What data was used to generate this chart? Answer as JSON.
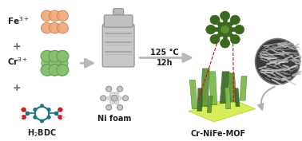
{
  "background_color": "#ffffff",
  "fe_label": "Fe$^{3+}$",
  "cr_label": "Cr$^{3+}$",
  "h2bdc_label": "H$_2$BDC",
  "nifoam_label": "Ni foam",
  "product_label": "Cr-NiFe-MOF",
  "condition1": "125 °C",
  "condition2": "12h",
  "fe_color": "#f0a878",
  "cr_color": "#88c070",
  "cr_edge": "#60a050",
  "fe_edge": "#d08858",
  "arrow_color": "#b8b8b8",
  "mof_dark_green": "#3a6820",
  "mof_mid_green": "#5a9030",
  "mof_light_green": "#7ab848",
  "mof_base_yellow": "#d8eb60",
  "mof_base_green_edge": "#a0c020",
  "red_line_color": "#cc1010",
  "sem_bg": "#383838",
  "sem_fiber": "#c0c0c0",
  "autoclave_body": "#c8c8c8",
  "autoclave_dark": "#a0a0a0",
  "nifoam_edge": "#a8a8a8",
  "text_color": "#222222",
  "plus_color": "#666666"
}
